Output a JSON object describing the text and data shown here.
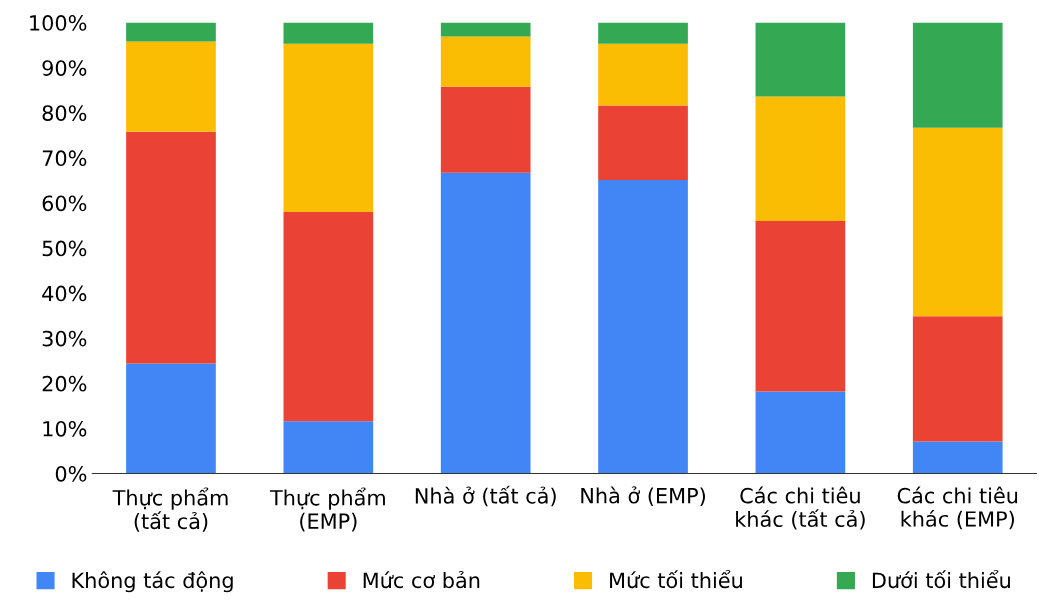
{
  "chart_data": {
    "type": "bar",
    "stacked": true,
    "categories": [
      "Thực phẩm\n(tất cả)",
      "Thực phẩm\n(EMP)",
      "Nhà ở (tất cả)",
      "Nhà ở (EMP)",
      "Các chi tiêu\nkhác (tất cả)",
      "Các chi tiêu\nkhác (EMP)"
    ],
    "series": [
      {
        "name": "Không tác động",
        "color": "#4285f4",
        "values": [
          24.4,
          11.6,
          66.7,
          65.1,
          18.2,
          7.1
        ]
      },
      {
        "name": "Mức cơ bản",
        "color": "#ea4335",
        "values": [
          51.4,
          46.4,
          19.1,
          16.5,
          37.8,
          27.8
        ]
      },
      {
        "name": "Mức tối thiểu",
        "color": "#fbbc04",
        "values": [
          20,
          37.3,
          11.1,
          13.7,
          27.6,
          41.8
        ]
      },
      {
        "name": "Dưới tối thiểu",
        "color": "#34a853",
        "values": [
          4.2,
          4.7,
          3.1,
          4.7,
          16.4,
          23.3
        ]
      }
    ],
    "ylim": [
      0,
      100
    ],
    "yticks": [
      {
        "value": 0,
        "label": "0%"
      },
      {
        "value": 10,
        "label": "10%"
      },
      {
        "value": 20,
        "label": "20%"
      },
      {
        "value": 30,
        "label": "30%"
      },
      {
        "value": 40,
        "label": "40%"
      },
      {
        "value": 50,
        "label": "50%"
      },
      {
        "value": 60,
        "label": "60%"
      },
      {
        "value": 70,
        "label": "70%"
      },
      {
        "value": 80,
        "label": "80%"
      },
      {
        "value": 90,
        "label": "90%"
      },
      {
        "value": 100,
        "label": "100%"
      }
    ],
    "grid": false,
    "legend": "bottom"
  }
}
